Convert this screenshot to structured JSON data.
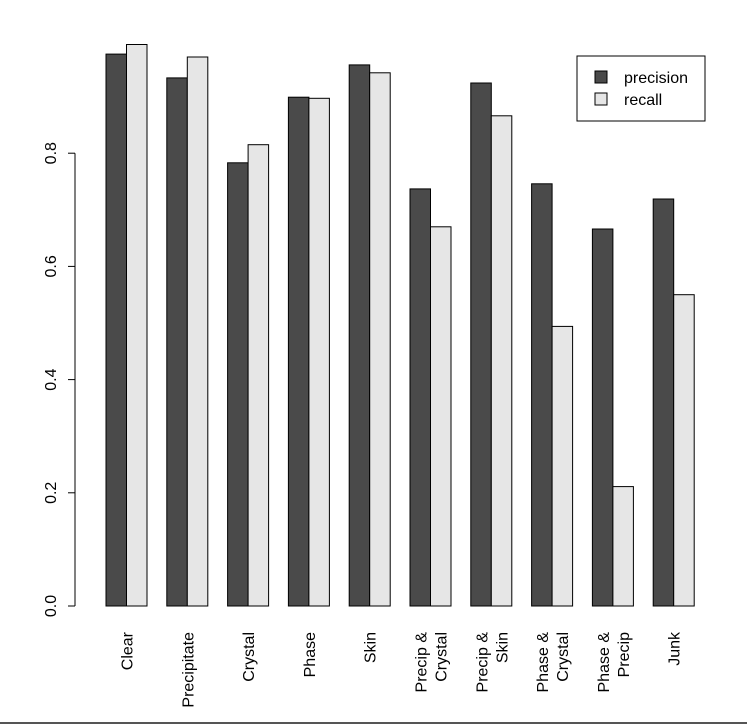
{
  "chart_data": {
    "type": "bar",
    "categories": [
      [
        "Clear"
      ],
      [
        "Precipitate"
      ],
      [
        "Crystal"
      ],
      [
        "Phase"
      ],
      [
        "Skin"
      ],
      [
        "Precip &",
        "Crystal"
      ],
      [
        "Precip &",
        "Skin"
      ],
      [
        "Phase &",
        "Crystal"
      ],
      [
        "Phase &",
        "Precip"
      ],
      [
        "Junk"
      ]
    ],
    "series": [
      {
        "name": "precision",
        "color": "#4a4a4a",
        "values": [
          0.975,
          0.933,
          0.783,
          0.899,
          0.956,
          0.737,
          0.924,
          0.746,
          0.666,
          0.719
        ]
      },
      {
        "name": "recall",
        "color": "#e6e6e6",
        "values": [
          0.992,
          0.97,
          0.815,
          0.897,
          0.942,
          0.67,
          0.866,
          0.494,
          0.211,
          0.55
        ]
      }
    ],
    "yticks": [
      "0.0",
      "0.2",
      "0.4",
      "0.6",
      "0.8"
    ],
    "ylim": [
      0,
      1.0
    ],
    "legend": "top-right",
    "title": "",
    "xlabel": "",
    "ylabel": ""
  }
}
